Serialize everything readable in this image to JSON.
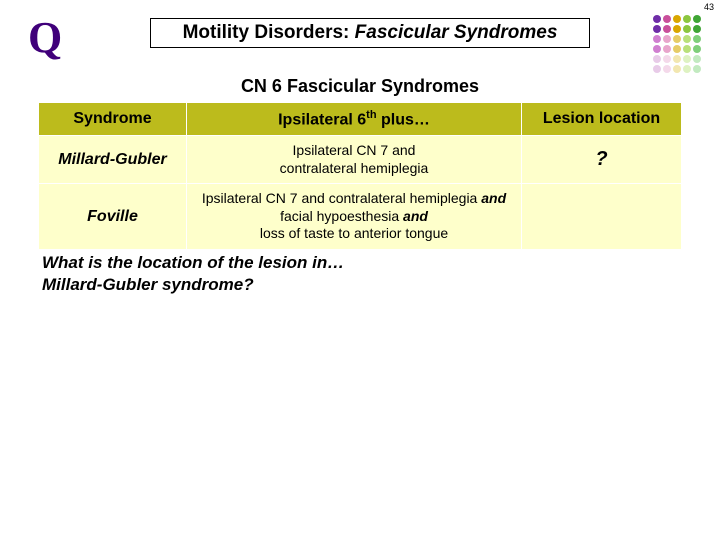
{
  "page_number": "43",
  "q_label": "Q",
  "title": {
    "prefix": "Motility Disorders: ",
    "suffix": "Fascicular Syndromes"
  },
  "subtitle": "CN 6 Fascicular Syndromes",
  "table": {
    "header_bg": "#bcbb1c",
    "cell_bg": "#feffcb",
    "columns": {
      "c1": "Syndrome",
      "c2_pre": "Ipsilateral 6",
      "c2_sup": "th",
      "c2_post": " plus…",
      "c3": "Lesion location"
    },
    "rows": [
      {
        "syndrome": "Millard-Gubler",
        "desc_lines": [
          "Ipsilateral CN 7 and",
          "contralateral hemiplegia"
        ],
        "location": "?"
      },
      {
        "syndrome": "Foville",
        "desc_html": "Ipsilateral CN 7 and contralateral hemiplegia <span class=\"bi\">and</span> facial hypoesthesia <span class=\"bi\">and</span><br>loss of taste to anterior tongue",
        "location": ""
      }
    ]
  },
  "question": {
    "line1": "What is the location of the lesion in…",
    "line2": "Millard-Gubler syndrome?"
  },
  "deco_colors": [
    [
      "#6f2da8",
      "#c94f9b",
      "#d9a600",
      "#8cc63f",
      "#3fa535"
    ],
    [
      "#6f2da8",
      "#c94f9b",
      "#d9a600",
      "#8cc63f",
      "#3fa535"
    ],
    [
      "#d07fd0",
      "#e8a5cc",
      "#e6cc66",
      "#b9e07a",
      "#7fcf7a"
    ],
    [
      "#d07fd0",
      "#e8a5cc",
      "#e6cc66",
      "#b9e07a",
      "#7fcf7a"
    ],
    [
      "#e8cbe8",
      "#f4d9ea",
      "#f2e7b0",
      "#def2c2",
      "#c2eac0"
    ],
    [
      "#e8cbe8",
      "#f4d9ea",
      "#f2e7b0",
      "#def2c2",
      "#c2eac0"
    ]
  ]
}
